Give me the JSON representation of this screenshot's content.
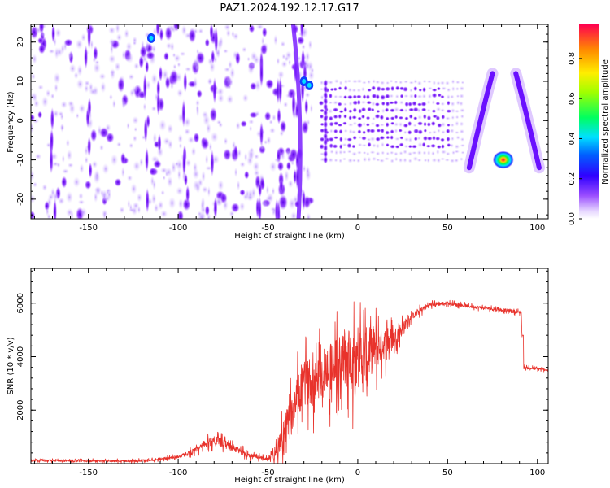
{
  "chart_data": [
    {
      "type": "heatmap",
      "title": "PAZ1.2024.192.12.17.G17",
      "xlabel": "Height of straight line (km)",
      "ylabel": "Frequency (Hz)",
      "xlim": [
        -182,
        106
      ],
      "ylim": [
        -25,
        24.5
      ],
      "xticks": [
        -150,
        -100,
        -50,
        0,
        50,
        100
      ],
      "yticks": [
        -20,
        -10,
        0,
        10,
        20
      ],
      "colorbar": {
        "label": "Normalized spectral amplitude",
        "range": [
          0,
          0.97
        ],
        "ticks": [
          0.0,
          0.2,
          0.4,
          0.6,
          0.8
        ],
        "colors": [
          "#ffffff",
          "#e6d6ff",
          "#7a00ff",
          "#0000ff",
          "#00ffff",
          "#00ff00",
          "#ffff00",
          "#ff8000",
          "#ff0040"
        ]
      },
      "features": [
        {
          "name": "noise-region",
          "x_range": [
            -182,
            -25
          ],
          "freq_range": [
            -25,
            24.5
          ]
        },
        {
          "name": "tone-block",
          "x_range": [
            -20,
            60
          ],
          "freq_range": [
            -10,
            10
          ]
        },
        {
          "name": "arc-left",
          "x": [
            62,
            68,
            75
          ],
          "freq": [
            -12,
            0,
            12
          ]
        },
        {
          "name": "hotspot",
          "x": 81,
          "freq": -10,
          "amplitude": 0.95
        },
        {
          "name": "arc-right",
          "x": [
            88,
            95,
            101
          ],
          "freq": [
            12,
            0,
            -12
          ]
        }
      ]
    },
    {
      "type": "line",
      "title": "",
      "xlabel": "Height of straight line (km)",
      "ylabel": "SNR (10 * v/v)",
      "xlim": [
        -182,
        106
      ],
      "ylim": [
        0,
        7300
      ],
      "xticks": [
        -150,
        -100,
        -50,
        0,
        50,
        100
      ],
      "yticks": [
        2000,
        4000,
        6000
      ],
      "series": [
        {
          "color": "#e8322b",
          "trend": [
            [
              -182,
              120
            ],
            [
              -150,
              100
            ],
            [
              -120,
              110
            ],
            [
              -100,
              250
            ],
            [
              -90,
              500
            ],
            [
              -80,
              900
            ],
            [
              -70,
              600
            ],
            [
              -60,
              300
            ],
            [
              -50,
              180
            ],
            [
              -45,
              600
            ],
            [
              -40,
              1200
            ],
            [
              -35,
              2200
            ],
            [
              -30,
              3000
            ],
            [
              -25,
              3100
            ],
            [
              -20,
              3400
            ],
            [
              -10,
              3800
            ],
            [
              0,
              4000
            ],
            [
              5,
              4100
            ],
            [
              10,
              4300
            ],
            [
              20,
              4700
            ],
            [
              30,
              5500
            ],
            [
              40,
              5950
            ],
            [
              50,
              6000
            ],
            [
              60,
              5900
            ],
            [
              80,
              5750
            ],
            [
              91,
              5650
            ],
            [
              92,
              3600
            ],
            [
              106,
              3500
            ]
          ],
          "noise": [
            [
              -182,
              60
            ],
            [
              -100,
              80
            ],
            [
              -80,
              300
            ],
            [
              -50,
              80
            ],
            [
              -40,
              1200
            ],
            [
              -20,
              1500
            ],
            [
              0,
              2000
            ],
            [
              10,
              1300
            ],
            [
              20,
              600
            ],
            [
              30,
              200
            ],
            [
              50,
              100
            ],
            [
              91,
              100
            ],
            [
              106,
              60
            ]
          ]
        }
      ]
    }
  ]
}
